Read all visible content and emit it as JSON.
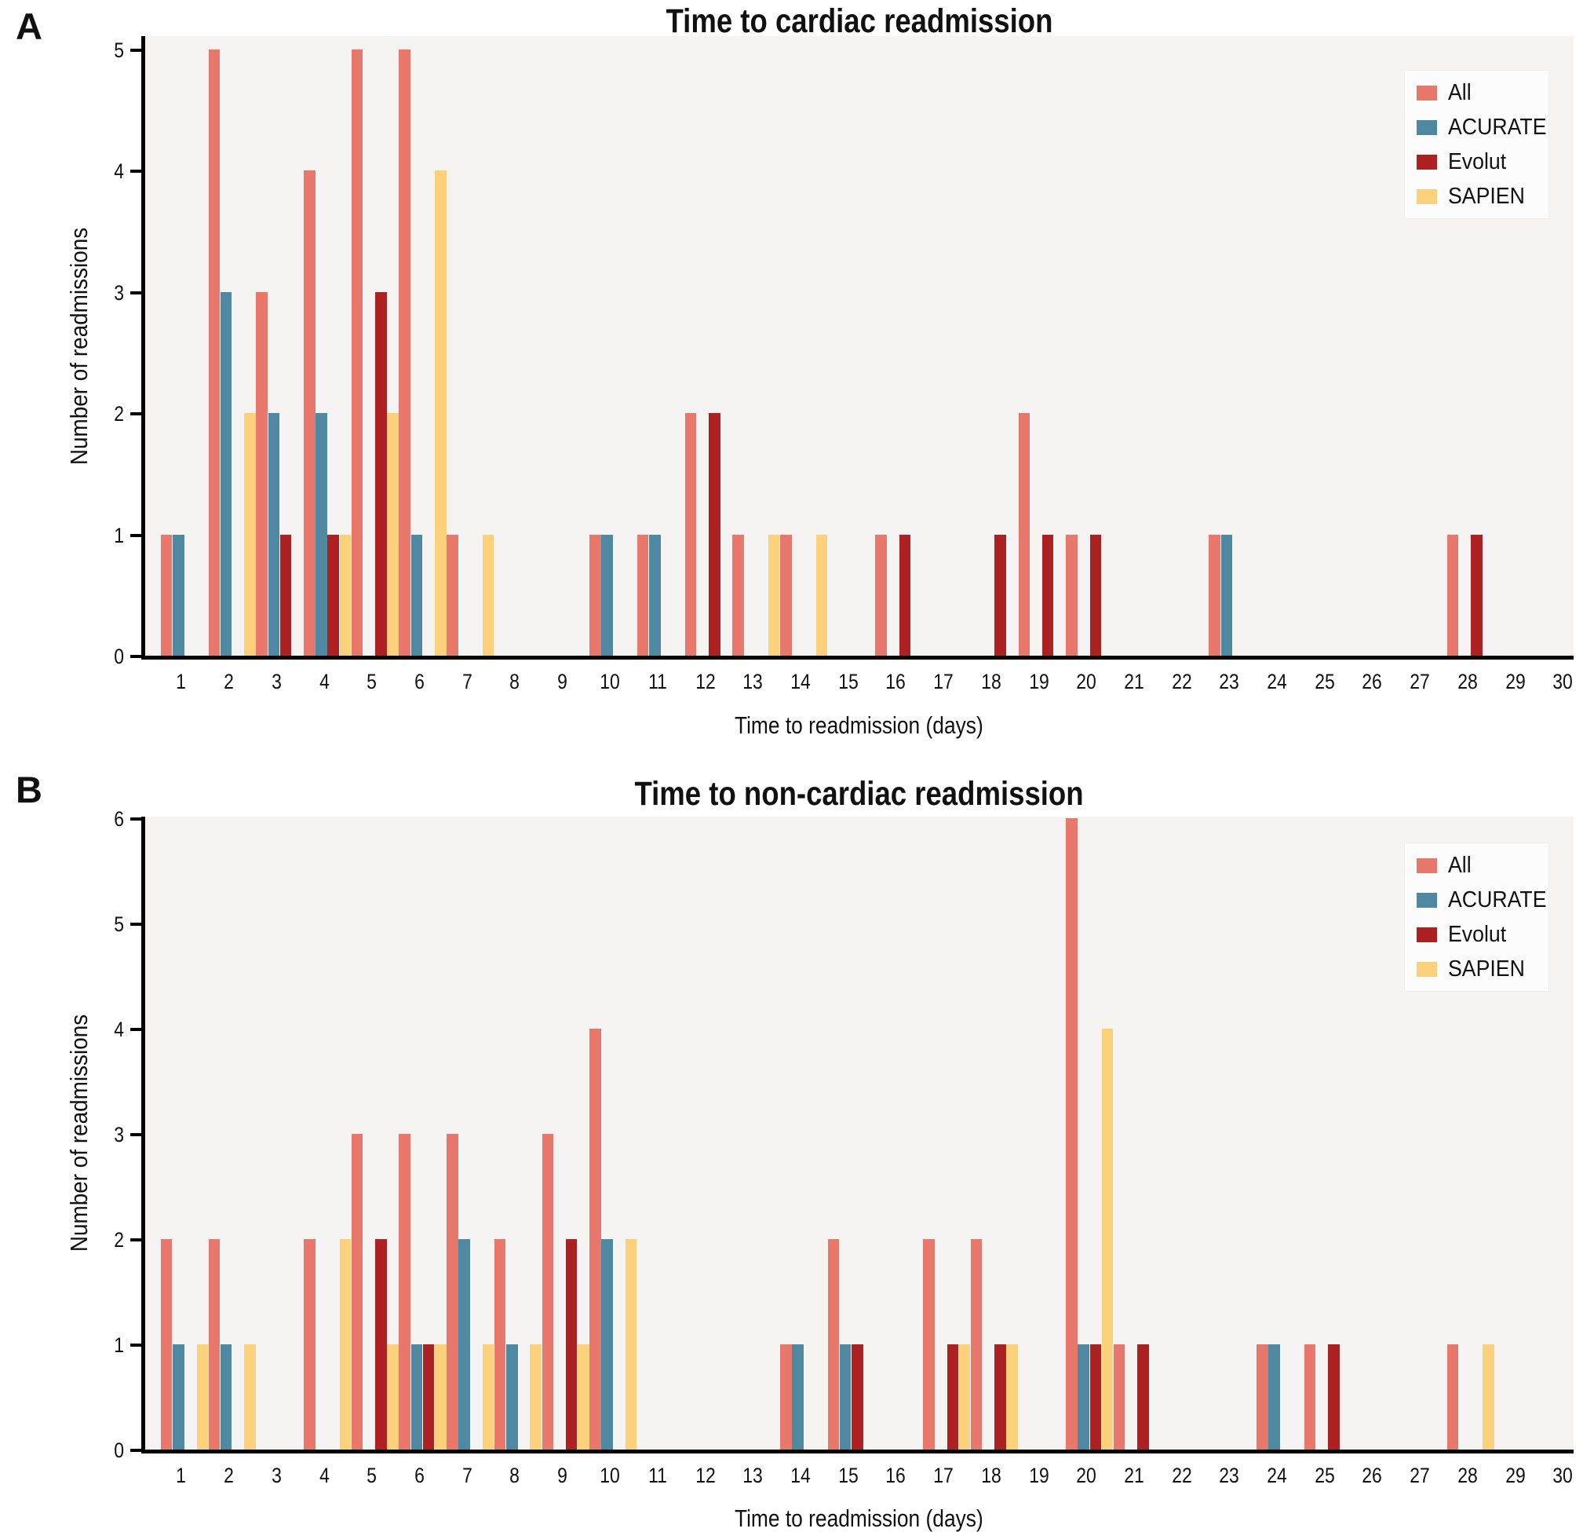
{
  "colors": {
    "all": "#E8786C",
    "acurate": "#4E89A1",
    "evolut": "#AE2123",
    "sapien": "#FBD17C",
    "plot_bg": "#F5F4F3",
    "axis": "#000000",
    "legend_bg": "#FCFCFC"
  },
  "chart_data": [
    {
      "type": "bar",
      "panel_label": "A",
      "title": "Time to cardiac readmission",
      "xlabel": "Time to readmission (days)",
      "ylabel": "Number of readmissions",
      "ylim": [
        0,
        5
      ],
      "yticks": [
        0,
        1,
        2,
        3,
        4,
        5
      ],
      "grid": false,
      "legend_position": "top-right",
      "categories": [
        1,
        2,
        3,
        4,
        5,
        6,
        7,
        8,
        9,
        10,
        11,
        12,
        13,
        14,
        15,
        16,
        17,
        18,
        19,
        20,
        21,
        22,
        23,
        24,
        25,
        26,
        27,
        28,
        29,
        30
      ],
      "series": [
        {
          "name": "All",
          "color_key": "all",
          "values": [
            1,
            5,
            3,
            4,
            5,
            5,
            1,
            0,
            0,
            1,
            1,
            2,
            1,
            1,
            0,
            1,
            0,
            0,
            2,
            1,
            0,
            0,
            1,
            0,
            0,
            0,
            0,
            1,
            0,
            0
          ]
        },
        {
          "name": "ACURATE",
          "color_key": "acurate",
          "values": [
            1,
            3,
            2,
            2,
            0,
            1,
            0,
            0,
            0,
            1,
            1,
            0,
            0,
            0,
            0,
            0,
            0,
            0,
            0,
            0,
            0,
            0,
            1,
            0,
            0,
            0,
            0,
            0,
            0,
            0
          ]
        },
        {
          "name": "Evolut",
          "color_key": "evolut",
          "values": [
            0,
            0,
            1,
            1,
            3,
            0,
            0,
            0,
            0,
            0,
            0,
            2,
            0,
            0,
            0,
            1,
            0,
            1,
            1,
            1,
            0,
            0,
            0,
            0,
            0,
            0,
            0,
            1,
            0,
            0
          ]
        },
        {
          "name": "SAPIEN",
          "color_key": "sapien",
          "values": [
            0,
            2,
            0,
            1,
            2,
            4,
            1,
            0,
            0,
            0,
            0,
            0,
            1,
            1,
            0,
            0,
            0,
            0,
            0,
            0,
            0,
            0,
            0,
            0,
            0,
            0,
            0,
            0,
            0,
            0
          ]
        }
      ]
    },
    {
      "type": "bar",
      "panel_label": "B",
      "title": "Time to non-cardiac readmission",
      "xlabel": "Time to readmission (days)",
      "ylabel": "Number of readmissions",
      "ylim": [
        0,
        6
      ],
      "yticks": [
        0,
        1,
        2,
        3,
        4,
        5,
        6
      ],
      "grid": false,
      "legend_position": "top-right",
      "categories": [
        1,
        2,
        3,
        4,
        5,
        6,
        7,
        8,
        9,
        10,
        11,
        12,
        13,
        14,
        15,
        16,
        17,
        18,
        19,
        20,
        21,
        22,
        23,
        24,
        25,
        26,
        27,
        28,
        29,
        30
      ],
      "series": [
        {
          "name": "All",
          "color_key": "all",
          "values": [
            2,
            2,
            0,
            2,
            3,
            3,
            3,
            2,
            3,
            4,
            0,
            0,
            0,
            1,
            2,
            0,
            2,
            2,
            0,
            6,
            1,
            0,
            0,
            1,
            1,
            0,
            0,
            1,
            0,
            0
          ]
        },
        {
          "name": "ACURATE",
          "color_key": "acurate",
          "values": [
            1,
            1,
            0,
            0,
            0,
            1,
            2,
            1,
            0,
            2,
            0,
            0,
            0,
            1,
            1,
            0,
            0,
            0,
            0,
            1,
            0,
            0,
            0,
            1,
            0,
            0,
            0,
            0,
            0,
            0
          ]
        },
        {
          "name": "Evolut",
          "color_key": "evolut",
          "values": [
            0,
            0,
            0,
            0,
            2,
            1,
            0,
            0,
            2,
            0,
            0,
            0,
            0,
            0,
            1,
            0,
            1,
            1,
            0,
            1,
            1,
            0,
            0,
            0,
            1,
            0,
            0,
            0,
            0,
            0
          ]
        },
        {
          "name": "SAPIEN",
          "color_key": "sapien",
          "values": [
            1,
            1,
            0,
            2,
            1,
            1,
            1,
            1,
            1,
            2,
            0,
            0,
            0,
            0,
            0,
            0,
            1,
            1,
            0,
            4,
            0,
            0,
            0,
            0,
            0,
            0,
            0,
            1,
            0,
            0
          ]
        }
      ]
    }
  ]
}
